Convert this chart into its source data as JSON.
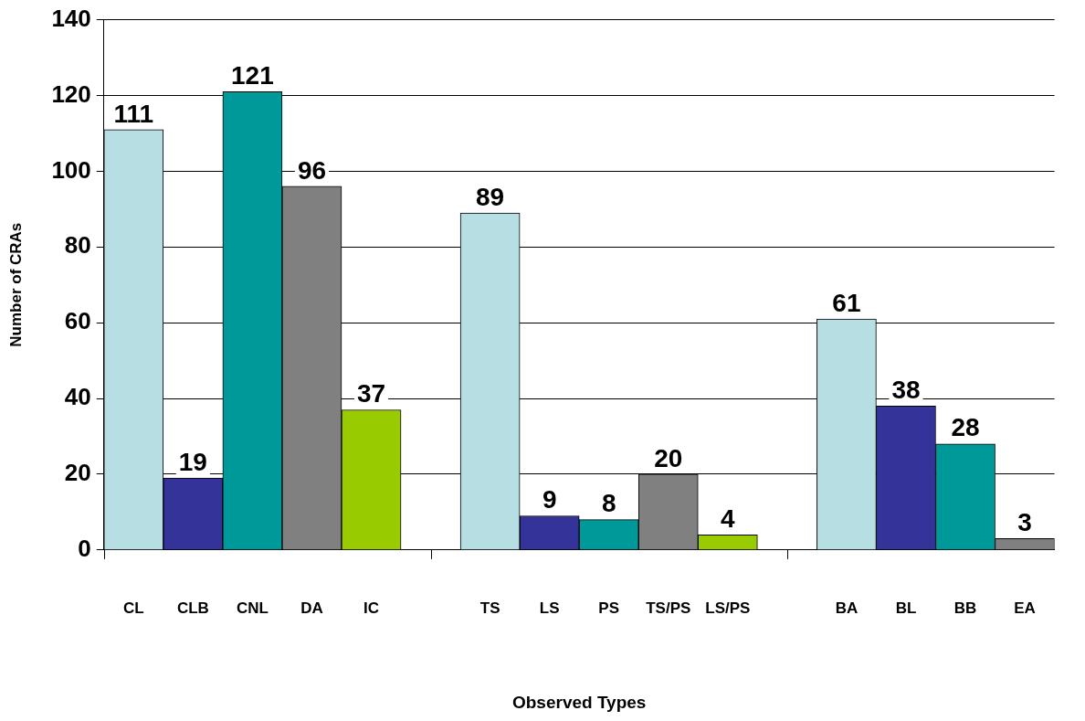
{
  "chart_data": {
    "type": "bar",
    "xlabel": "Observed Types",
    "ylabel": "Number of CRAs",
    "categories": [
      "CL",
      "CLB",
      "CNL",
      "DA",
      "IC",
      null,
      "TS",
      "LS",
      "PS",
      "TS/PS",
      "LS/PS",
      null,
      "BA",
      "BL",
      "BB",
      "EA"
    ],
    "values": [
      111,
      19,
      121,
      96,
      37,
      null,
      89,
      9,
      8,
      20,
      4,
      null,
      61,
      38,
      28,
      3
    ],
    "colors": [
      "#b7dfe3",
      "#333399",
      "#009999",
      "#808080",
      "#99cc00",
      "#ffffff",
      "#b7dfe3",
      "#333399",
      "#009999",
      "#808080",
      "#99cc00",
      "#ffffff",
      "#b7dfe3",
      "#333399",
      "#009999",
      "#808080"
    ],
    "ylim": [
      0,
      140
    ],
    "yticks": [
      0,
      20,
      40,
      60,
      80,
      100,
      120,
      140
    ],
    "grid": "y",
    "data_labels": true,
    "legend": false
  }
}
